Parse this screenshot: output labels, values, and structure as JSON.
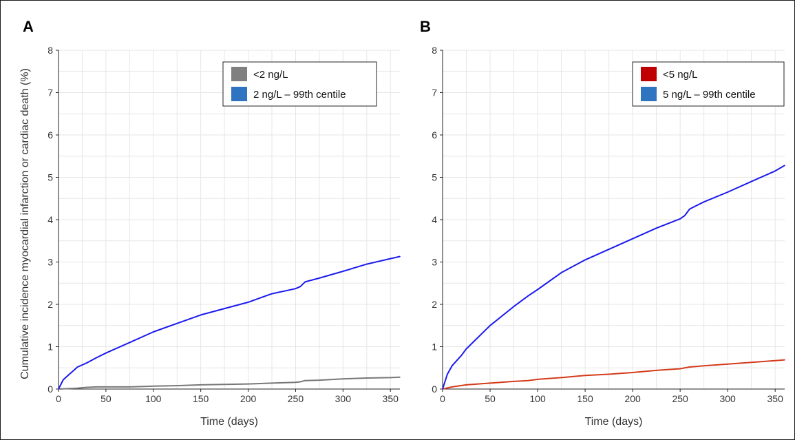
{
  "ylabel": "Cumulative incidence myocardial infarction or cardiac death (%)",
  "chart_data": [
    {
      "panel": "A",
      "type": "line",
      "xlabel": "Time (days)",
      "ylabel": "Cumulative incidence myocardial infarction or cardiac death (%)",
      "xlim": [
        0,
        360
      ],
      "ylim": [
        0,
        8
      ],
      "xticks": [
        0,
        50,
        100,
        150,
        200,
        250,
        300,
        350
      ],
      "yticks": [
        0,
        1,
        2,
        3,
        4,
        5,
        6,
        7,
        8
      ],
      "grid": true,
      "legend_position": "top-right",
      "series": [
        {
          "name": "<2 ng/L",
          "line_color": "#777777",
          "legend_color": "#808080",
          "x": [
            0,
            10,
            20,
            30,
            40,
            50,
            75,
            90,
            100,
            125,
            150,
            175,
            200,
            225,
            250,
            255,
            260,
            275,
            300,
            325,
            350,
            360
          ],
          "y": [
            0,
            0.01,
            0.02,
            0.04,
            0.05,
            0.05,
            0.05,
            0.06,
            0.07,
            0.08,
            0.1,
            0.11,
            0.12,
            0.14,
            0.16,
            0.17,
            0.2,
            0.21,
            0.24,
            0.26,
            0.27,
            0.28
          ]
        },
        {
          "name": "2 ng/L – 99th centile",
          "line_color": "#1a1aee",
          "legend_color": "#2e74c0",
          "x": [
            0,
            5,
            10,
            20,
            30,
            40,
            50,
            75,
            100,
            125,
            150,
            175,
            200,
            225,
            250,
            255,
            260,
            275,
            300,
            325,
            350,
            360
          ],
          "y": [
            0,
            0.22,
            0.32,
            0.52,
            0.62,
            0.74,
            0.85,
            1.1,
            1.35,
            1.55,
            1.75,
            1.9,
            2.05,
            2.25,
            2.37,
            2.42,
            2.53,
            2.62,
            2.78,
            2.95,
            3.08,
            3.13
          ]
        }
      ]
    },
    {
      "panel": "B",
      "type": "line",
      "xlabel": "Time (days)",
      "ylabel": "",
      "xlim": [
        0,
        360
      ],
      "ylim": [
        0,
        8
      ],
      "xticks": [
        0,
        50,
        100,
        150,
        200,
        250,
        300,
        350
      ],
      "yticks": [
        0,
        1,
        2,
        3,
        4,
        5,
        6,
        7,
        8
      ],
      "grid": true,
      "legend_position": "top-right",
      "series": [
        {
          "name": "<5 ng/L",
          "line_color": "#d43a1a",
          "legend_color": "#c00000",
          "x": [
            0,
            10,
            25,
            50,
            75,
            90,
            100,
            125,
            150,
            175,
            200,
            225,
            250,
            260,
            275,
            300,
            325,
            350,
            360
          ],
          "y": [
            0,
            0.05,
            0.1,
            0.14,
            0.18,
            0.2,
            0.23,
            0.27,
            0.32,
            0.35,
            0.39,
            0.44,
            0.48,
            0.52,
            0.55,
            0.59,
            0.63,
            0.67,
            0.69
          ]
        },
        {
          "name": "5 ng/L – 99th centile",
          "line_color": "#1a1aee",
          "legend_color": "#2e74c0",
          "x": [
            0,
            5,
            10,
            20,
            25,
            50,
            75,
            90,
            100,
            125,
            150,
            175,
            200,
            225,
            250,
            255,
            260,
            275,
            300,
            325,
            350,
            360
          ],
          "y": [
            0,
            0.35,
            0.55,
            0.8,
            0.95,
            1.5,
            1.95,
            2.2,
            2.35,
            2.75,
            3.05,
            3.3,
            3.55,
            3.8,
            4.02,
            4.1,
            4.25,
            4.42,
            4.65,
            4.9,
            5.15,
            5.28
          ]
        }
      ]
    }
  ]
}
